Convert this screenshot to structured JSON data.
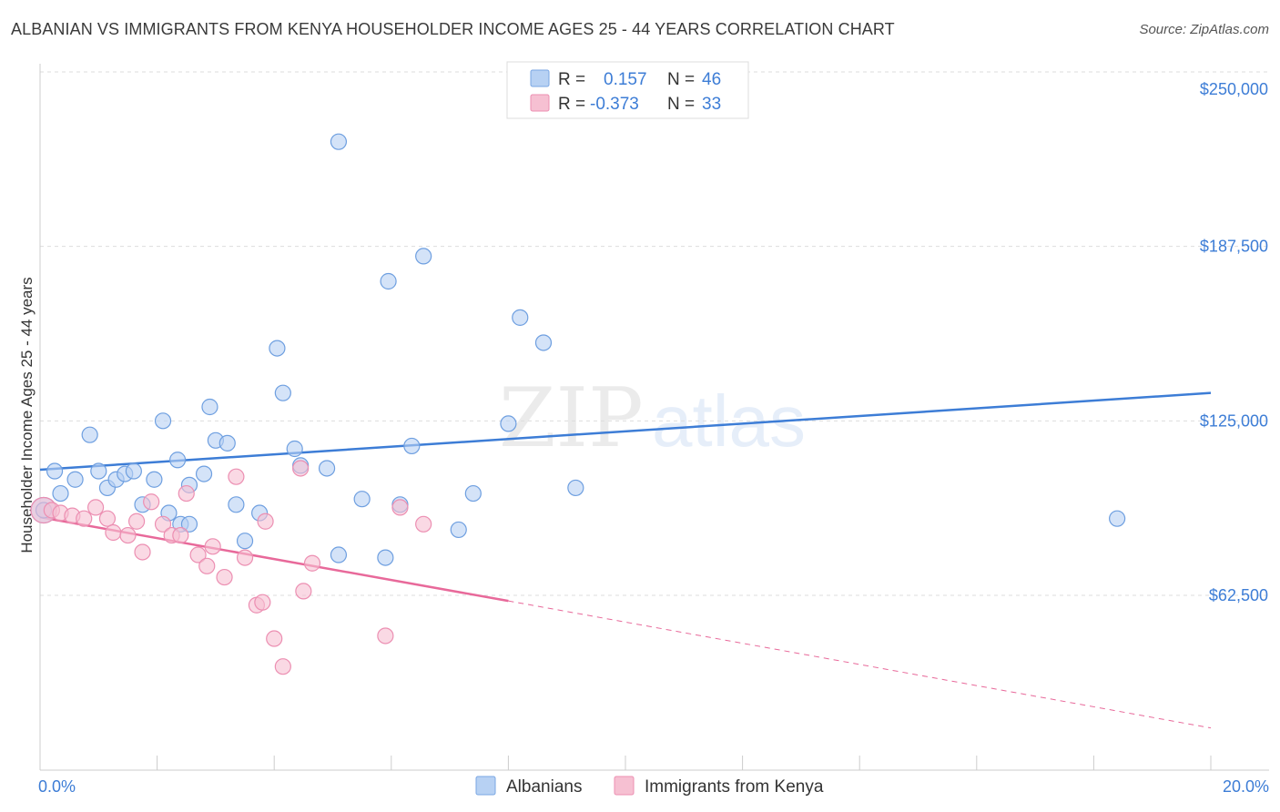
{
  "title": "ALBANIAN VS IMMIGRANTS FROM KENYA HOUSEHOLDER INCOME AGES 25 - 44 YEARS CORRELATION CHART",
  "source": "Source: ZipAtlas.com",
  "watermark": {
    "zip": "ZIP",
    "atlas": "atlas"
  },
  "colors": {
    "blue": "#3d7dd6",
    "blue_fill": "#b7d1f3",
    "pink": "#e8699a",
    "pink_fill": "#f6c0d2",
    "grid": "#dddddd"
  },
  "legend": {
    "rows": [
      {
        "r_label": "R =",
        "r_value": "0.157",
        "n_label": "N =",
        "n_value": "46"
      },
      {
        "r_label": "R =",
        "r_value": "-0.373",
        "n_label": "N =",
        "n_value": "33"
      }
    ]
  },
  "bottom_legend": [
    "Albanians",
    "Immigrants from Kenya"
  ],
  "chart_data": {
    "type": "scatter",
    "title": "ALBANIAN VS IMMIGRANTS FROM KENYA HOUSEHOLDER INCOME AGES 25 - 44 YEARS CORRELATION CHART",
    "xlabel": "",
    "ylabel": "Householder Income Ages 25 - 44 years",
    "xlim": [
      0,
      20
    ],
    "ylim": [
      0,
      260000
    ],
    "x_tick_labels": [
      "0.0%",
      "20.0%"
    ],
    "y_ticks": [
      62500,
      125000,
      187500,
      250000
    ],
    "y_tick_labels": [
      "$62,500",
      "$125,000",
      "$187,500",
      "$250,000"
    ],
    "grid": true,
    "legend_position": "top-center",
    "series": [
      {
        "name": "Albanians",
        "color": "#3d7dd6",
        "trend": {
          "x": [
            0,
            20
          ],
          "y": [
            107500,
            135000
          ],
          "dashed_from": null
        },
        "points": [
          [
            0.0,
            93000
          ],
          [
            0.25,
            107000
          ],
          [
            0.35,
            99000
          ],
          [
            0.6,
            104000
          ],
          [
            0.85,
            120000
          ],
          [
            1.0,
            107000
          ],
          [
            1.15,
            101000
          ],
          [
            1.3,
            104000
          ],
          [
            1.45,
            106000
          ],
          [
            1.6,
            107000
          ],
          [
            1.75,
            95000
          ],
          [
            1.95,
            104000
          ],
          [
            2.1,
            125000
          ],
          [
            2.2,
            92000
          ],
          [
            2.35,
            111000
          ],
          [
            2.4,
            88000
          ],
          [
            2.55,
            102000
          ],
          [
            2.55,
            88000
          ],
          [
            2.8,
            106000
          ],
          [
            2.9,
            130000
          ],
          [
            3.0,
            118000
          ],
          [
            3.2,
            117000
          ],
          [
            3.35,
            95000
          ],
          [
            3.5,
            82000
          ],
          [
            3.75,
            92000
          ],
          [
            4.05,
            151000
          ],
          [
            4.15,
            135000
          ],
          [
            4.35,
            115000
          ],
          [
            4.45,
            109000
          ],
          [
            4.9,
            108000
          ],
          [
            5.1,
            77000
          ],
          [
            5.1,
            225000
          ],
          [
            5.5,
            97000
          ],
          [
            5.9,
            76000
          ],
          [
            5.95,
            175000
          ],
          [
            6.15,
            95000
          ],
          [
            6.35,
            116000
          ],
          [
            6.55,
            184000
          ],
          [
            7.15,
            86000
          ],
          [
            7.4,
            99000
          ],
          [
            8.0,
            124000
          ],
          [
            8.2,
            162000
          ],
          [
            8.6,
            153000
          ],
          [
            9.15,
            101000
          ],
          [
            18.4,
            90000
          ],
          [
            0.0,
            93000
          ]
        ]
      },
      {
        "name": "Immigrants from Kenya",
        "color": "#e8699a",
        "trend": {
          "x": [
            0,
            8.0,
            20
          ],
          "y": [
            90500,
            60500,
            15000
          ],
          "dashed_from": 8.0
        },
        "points": [
          [
            0.0,
            93000
          ],
          [
            0.2,
            93000
          ],
          [
            0.35,
            92000
          ],
          [
            0.55,
            91000
          ],
          [
            0.75,
            90000
          ],
          [
            0.95,
            94000
          ],
          [
            1.15,
            90000
          ],
          [
            1.25,
            85000
          ],
          [
            1.5,
            84000
          ],
          [
            1.65,
            89000
          ],
          [
            1.75,
            78000
          ],
          [
            1.9,
            96000
          ],
          [
            2.1,
            88000
          ],
          [
            2.25,
            84000
          ],
          [
            2.4,
            84000
          ],
          [
            2.5,
            99000
          ],
          [
            2.7,
            77000
          ],
          [
            2.85,
            73000
          ],
          [
            2.95,
            80000
          ],
          [
            3.15,
            69000
          ],
          [
            3.35,
            105000
          ],
          [
            3.5,
            76000
          ],
          [
            3.7,
            59000
          ],
          [
            3.8,
            60000
          ],
          [
            3.85,
            89000
          ],
          [
            4.0,
            47000
          ],
          [
            4.15,
            37000
          ],
          [
            4.45,
            108000
          ],
          [
            4.5,
            64000
          ],
          [
            4.65,
            74000
          ],
          [
            5.9,
            48000
          ],
          [
            6.15,
            94000
          ],
          [
            6.55,
            88000
          ]
        ]
      }
    ]
  }
}
